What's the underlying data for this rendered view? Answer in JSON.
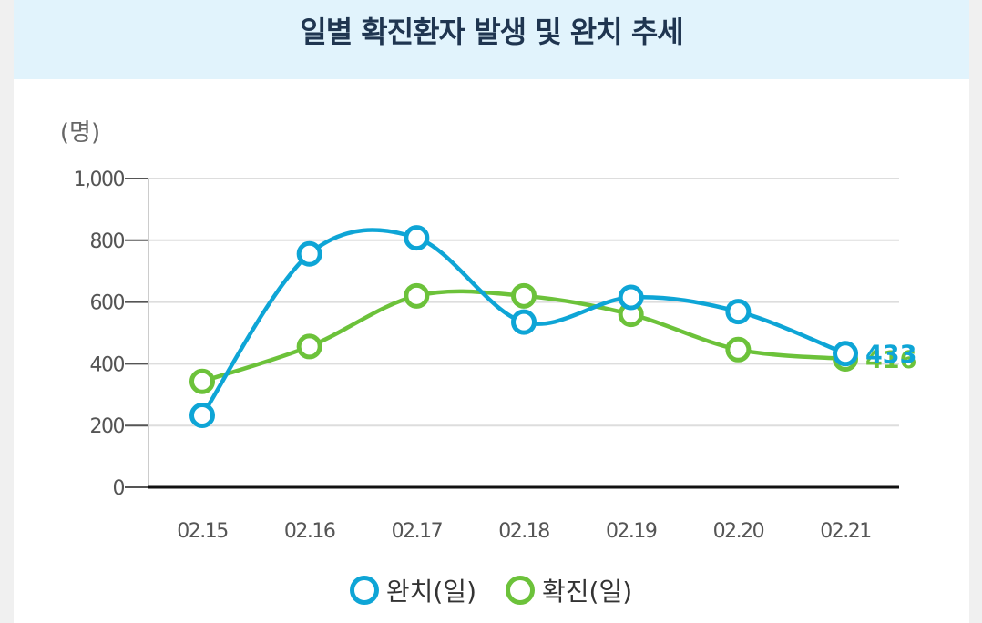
{
  "chart_data": {
    "type": "line",
    "title": "일별 확진환자 발생 및 완치 추세",
    "ylabel": "(명)",
    "xlabel": "",
    "ylim": [
      0,
      1000
    ],
    "y_ticks": [
      "0",
      "200",
      "400",
      "600",
      "800",
      "1,000"
    ],
    "y_tick_values": [
      0,
      200,
      400,
      600,
      800,
      1000
    ],
    "categories": [
      "02.15",
      "02.16",
      "02.17",
      "02.18",
      "02.19",
      "02.20",
      "02.21"
    ],
    "series": [
      {
        "name": "완치(일)",
        "color": "#0ea5d6",
        "values": [
          233,
          756,
          808,
          535,
          615,
          569,
          433
        ],
        "end_label": "433"
      },
      {
        "name": "확진(일)",
        "color": "#6cc23a",
        "values": [
          343,
          456,
          620,
          620,
          560,
          446,
          416
        ],
        "end_label": "416"
      }
    ],
    "legend": "bottom-center",
    "grid": true
  }
}
